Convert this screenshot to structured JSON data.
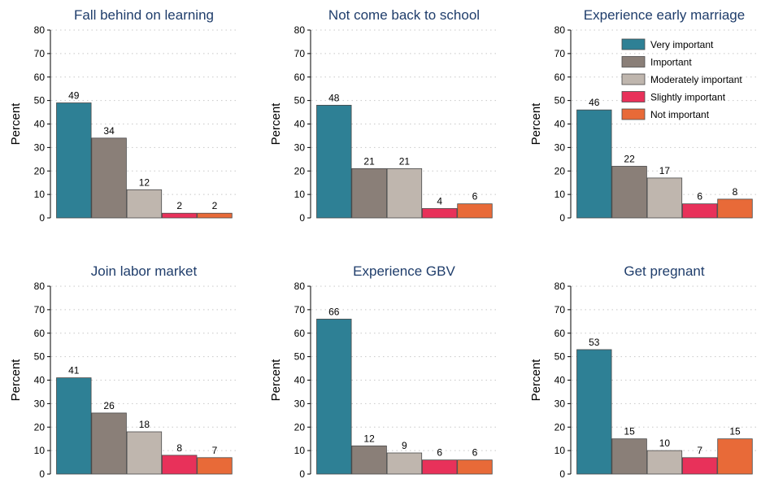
{
  "chart_data": [
    {
      "type": "bar",
      "title": "Fall behind on learning",
      "ylabel": "Percent",
      "ylim": [
        0,
        80
      ],
      "yticks": [
        0,
        10,
        20,
        30,
        40,
        50,
        60,
        70,
        80
      ],
      "categories": [
        "Very important",
        "Important",
        "Moderately important",
        "Slightly important",
        "Not important"
      ],
      "values": [
        49,
        34,
        12,
        2,
        2
      ],
      "value_labels": [
        "49",
        "34",
        "12",
        "2",
        "2"
      ],
      "grid": true
    },
    {
      "type": "bar",
      "title": "Not come back to school",
      "ylabel": "Percent",
      "ylim": [
        0,
        80
      ],
      "yticks": [
        0,
        10,
        20,
        30,
        40,
        50,
        60,
        70,
        80
      ],
      "categories": [
        "Very important",
        "Important",
        "Moderately important",
        "Slightly important",
        "Not important"
      ],
      "values": [
        48,
        21,
        21,
        4,
        6
      ],
      "value_labels": [
        "48",
        "21",
        "21",
        "4",
        "6"
      ],
      "grid": true
    },
    {
      "type": "bar",
      "title": "Experience early marriage",
      "ylabel": "Percent",
      "ylim": [
        0,
        80
      ],
      "yticks": [
        0,
        10,
        20,
        30,
        40,
        50,
        60,
        70,
        80
      ],
      "categories": [
        "Very important",
        "Important",
        "Moderately important",
        "Slightly important",
        "Not important"
      ],
      "values": [
        46,
        22,
        17,
        6,
        8
      ],
      "value_labels": [
        "46",
        "22",
        "17",
        "6",
        "8"
      ],
      "grid": true
    },
    {
      "type": "bar",
      "title": "Join labor market",
      "ylabel": "Percent",
      "ylim": [
        0,
        80
      ],
      "yticks": [
        0,
        10,
        20,
        30,
        40,
        50,
        60,
        70,
        80
      ],
      "categories": [
        "Very important",
        "Important",
        "Moderately important",
        "Slightly important",
        "Not important"
      ],
      "values": [
        41,
        26,
        18,
        8,
        7
      ],
      "value_labels": [
        "41",
        "26",
        "18",
        "8",
        "7"
      ],
      "grid": true
    },
    {
      "type": "bar",
      "title": "Experience GBV",
      "ylabel": "Percent",
      "ylim": [
        0,
        80
      ],
      "yticks": [
        0,
        10,
        20,
        30,
        40,
        50,
        60,
        70,
        80
      ],
      "categories": [
        "Very important",
        "Important",
        "Moderately important",
        "Slightly important",
        "Not important"
      ],
      "values": [
        66,
        12,
        9,
        6,
        6
      ],
      "value_labels": [
        "66",
        "12",
        "9",
        "6",
        "6"
      ],
      "grid": true
    },
    {
      "type": "bar",
      "title": "Get pregnant",
      "ylabel": "Percent",
      "ylim": [
        0,
        80
      ],
      "yticks": [
        0,
        10,
        20,
        30,
        40,
        50,
        60,
        70,
        80
      ],
      "categories": [
        "Very important",
        "Important",
        "Moderately important",
        "Slightly important",
        "Not important"
      ],
      "values": [
        53,
        15,
        10,
        7,
        15
      ],
      "value_labels": [
        "53",
        "15",
        "10",
        "7",
        "15"
      ],
      "grid": true
    }
  ],
  "legend": {
    "placement": "top-right of third panel",
    "entries": [
      "Very important",
      "Important",
      "Moderately important",
      "Slightly important",
      "Not important"
    ]
  },
  "colors": {
    "series": [
      "#2e8095",
      "#8a7f78",
      "#bfb6ae",
      "#e8315a",
      "#e86a38"
    ],
    "title": "#1f3d6b",
    "grid": "#c8c8c8",
    "axis": "#000000"
  }
}
